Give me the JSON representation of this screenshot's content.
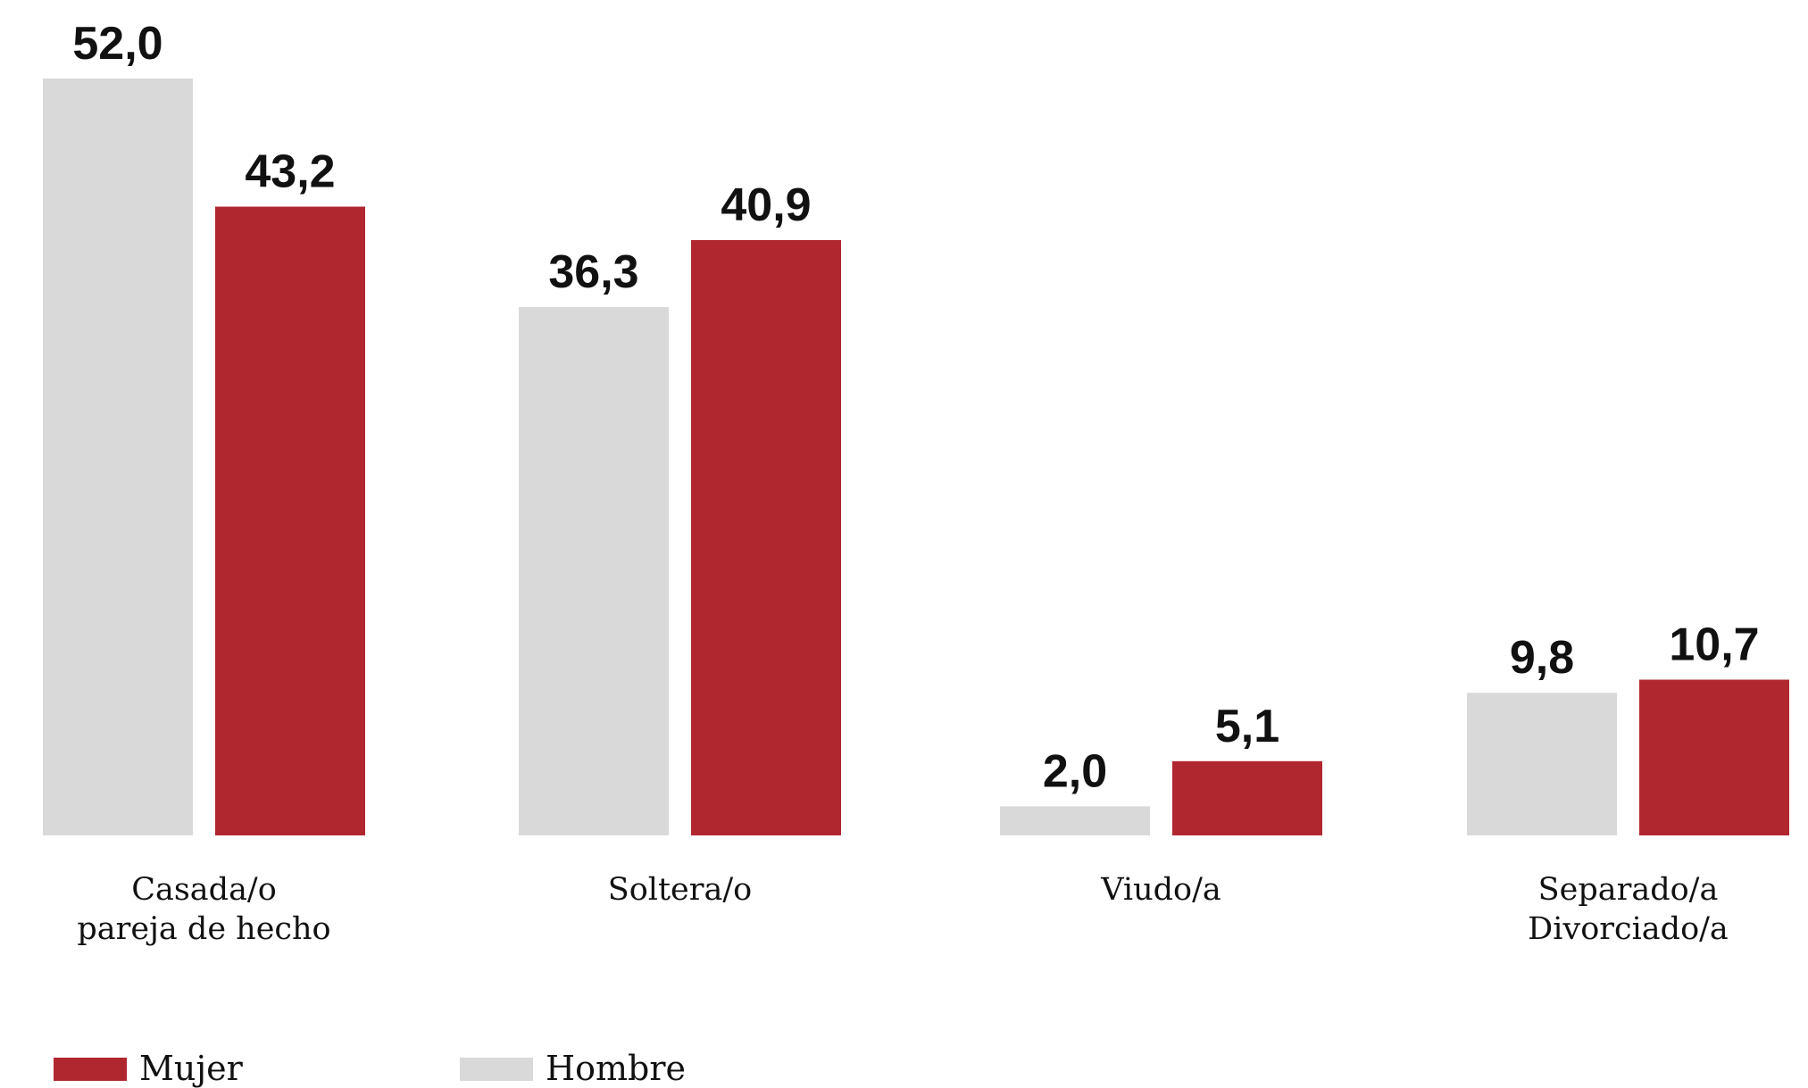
{
  "chart_data": {
    "type": "bar",
    "categories": [
      [
        "Casada/o",
        "pareja de hecho"
      ],
      [
        "Soltera/o"
      ],
      [
        "Viudo/a"
      ],
      [
        "Separado/a",
        "Divorciado/a"
      ]
    ],
    "series": [
      {
        "name": "Hombre",
        "color": "#d9d9d9",
        "values": [
          52.0,
          36.3,
          2.0,
          9.8
        ],
        "labels": [
          "52,0",
          "36,3",
          "2,0",
          "9,8"
        ]
      },
      {
        "name": "Mujer",
        "color": "#b02730",
        "values": [
          43.2,
          40.9,
          5.1,
          10.7
        ],
        "labels": [
          "43,2",
          "40,9",
          "5,1",
          "10,7"
        ]
      }
    ],
    "ylim": [
      0,
      52
    ],
    "grid": false,
    "legend": {
      "placement": "bottom-left",
      "order": [
        "Mujer",
        "Hombre"
      ]
    }
  }
}
